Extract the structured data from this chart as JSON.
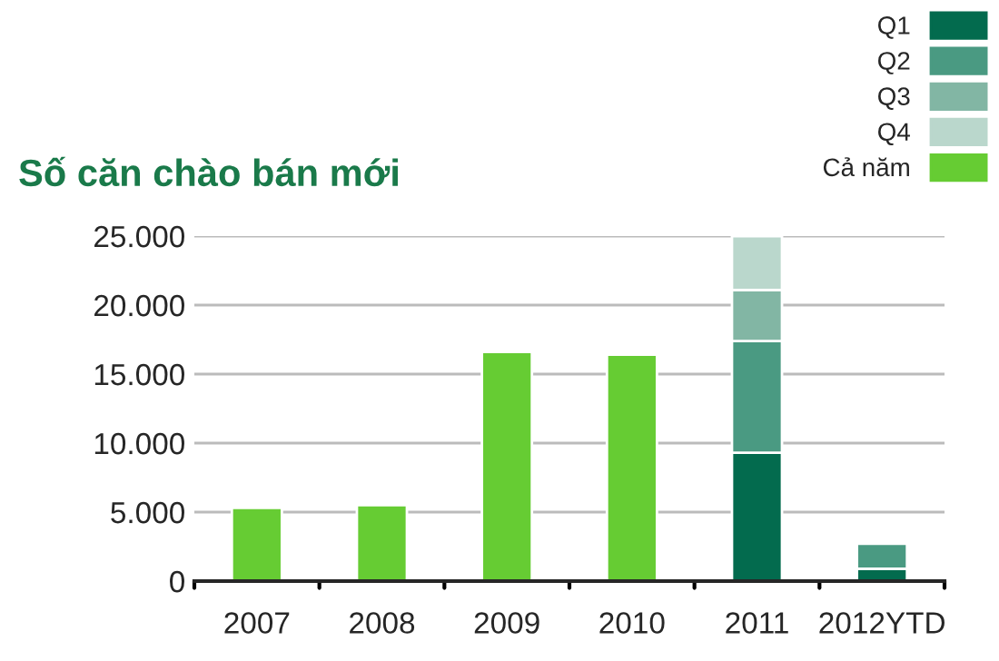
{
  "chart_data": {
    "type": "bar",
    "title": "Số căn chào bán mới",
    "categories": [
      "2007",
      "2008",
      "2009",
      "2010",
      "2011",
      "2012YTD"
    ],
    "stacked": true,
    "series": [
      {
        "name": "Q1",
        "color": "#036b4e",
        "values": [
          null,
          null,
          null,
          null,
          9300,
          900
        ]
      },
      {
        "name": "Q2",
        "color": "#4a9a82",
        "values": [
          null,
          null,
          null,
          null,
          8100,
          1800
        ]
      },
      {
        "name": "Q3",
        "color": "#82b6a4",
        "values": [
          null,
          null,
          null,
          null,
          3700,
          null
        ]
      },
      {
        "name": "Q4",
        "color": "#bad7cc",
        "values": [
          null,
          null,
          null,
          null,
          3900,
          null
        ]
      },
      {
        "name": "Cả năm",
        "color": "#66cc33",
        "values": [
          5300,
          5500,
          16600,
          16400,
          null,
          null
        ]
      }
    ],
    "ylim": [
      0,
      25000
    ],
    "yticks": [
      {
        "value": 0,
        "label": "0"
      },
      {
        "value": 5000,
        "label": "5.000"
      },
      {
        "value": 10000,
        "label": "10.000"
      },
      {
        "value": 15000,
        "label": "15.000"
      },
      {
        "value": 20000,
        "label": "20.000"
      },
      {
        "value": 25000,
        "label": "25.000"
      }
    ],
    "grid": "y",
    "legend": "top right"
  }
}
